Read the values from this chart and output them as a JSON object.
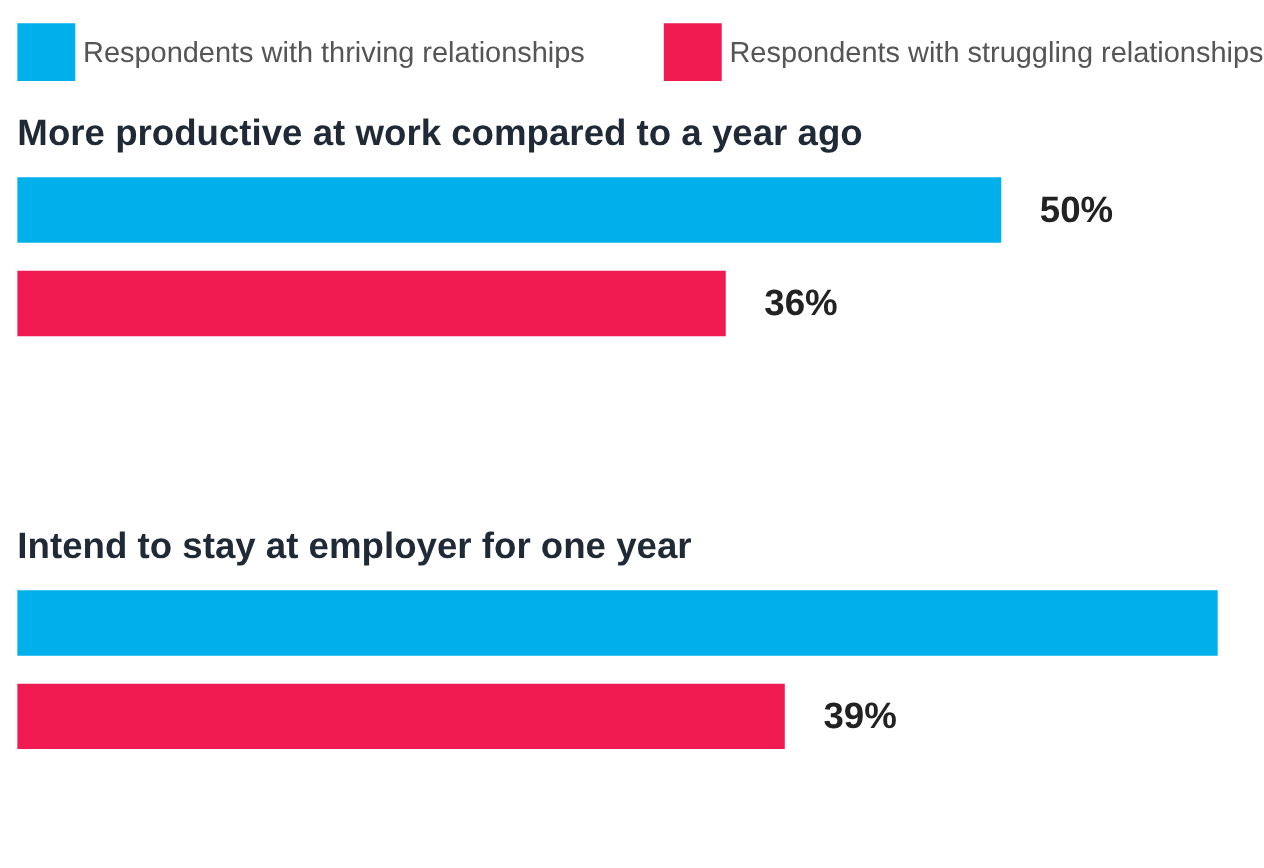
{
  "chart_data": {
    "type": "bar",
    "orientation": "horizontal",
    "categories": [
      "More productive at work compared to a year ago",
      "Intend to stay at employer for one year"
    ],
    "series": [
      {
        "name": "Respondents with thriving relationships",
        "color": "#00b0ea",
        "values": [
          50,
          61
        ],
        "value_labels": [
          "50%",
          null
        ]
      },
      {
        "name": "Respondents with struggling relationships",
        "color": "#ef1a50",
        "values": [
          36,
          39
        ],
        "value_labels": [
          "36%",
          "39%"
        ]
      }
    ],
    "legend": "top"
  }
}
